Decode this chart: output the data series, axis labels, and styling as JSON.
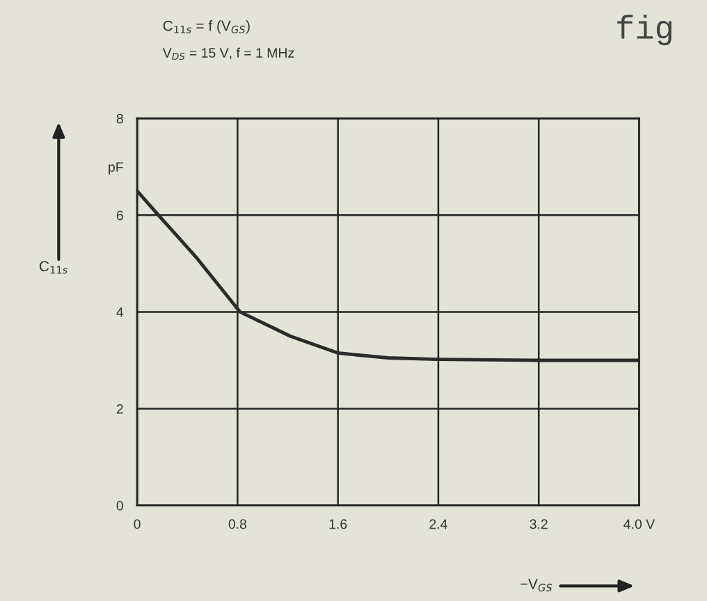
{
  "chart_data": {
    "type": "line",
    "title": "C$_{11s}$ = f (V$_{GS}$)",
    "subtitle": "V$_{DS}$ = 15 V, f = 1 MHz",
    "xlabel": "−V$_{GS}$",
    "ylabel": "C$_{11s}$",
    "annotations": [
      "fig"
    ],
    "x": [
      0,
      0.17,
      0.48,
      0.82,
      1.22,
      1.6,
      2.0,
      2.4,
      3.2,
      4.0
    ],
    "series": [
      {
        "color": "#2b2b2b",
        "values": [
          6.5,
          6.0,
          5.1,
          4.0,
          3.5,
          3.15,
          3.05,
          3.02,
          3.0,
          3.0
        ]
      }
    ],
    "xlim": [
      0,
      4.0
    ],
    "xticks": [
      0,
      0.8,
      1.6,
      2.4,
      3.2,
      {
        "value": 4.0,
        "label": "4.0 V"
      }
    ],
    "ylim": [
      0,
      8
    ],
    "yticks": [
      0,
      2,
      4,
      6,
      {
        "value": 7,
        "label": "pF"
      },
      8
    ],
    "grid": true,
    "marker": "none",
    "line_style": "solid"
  }
}
